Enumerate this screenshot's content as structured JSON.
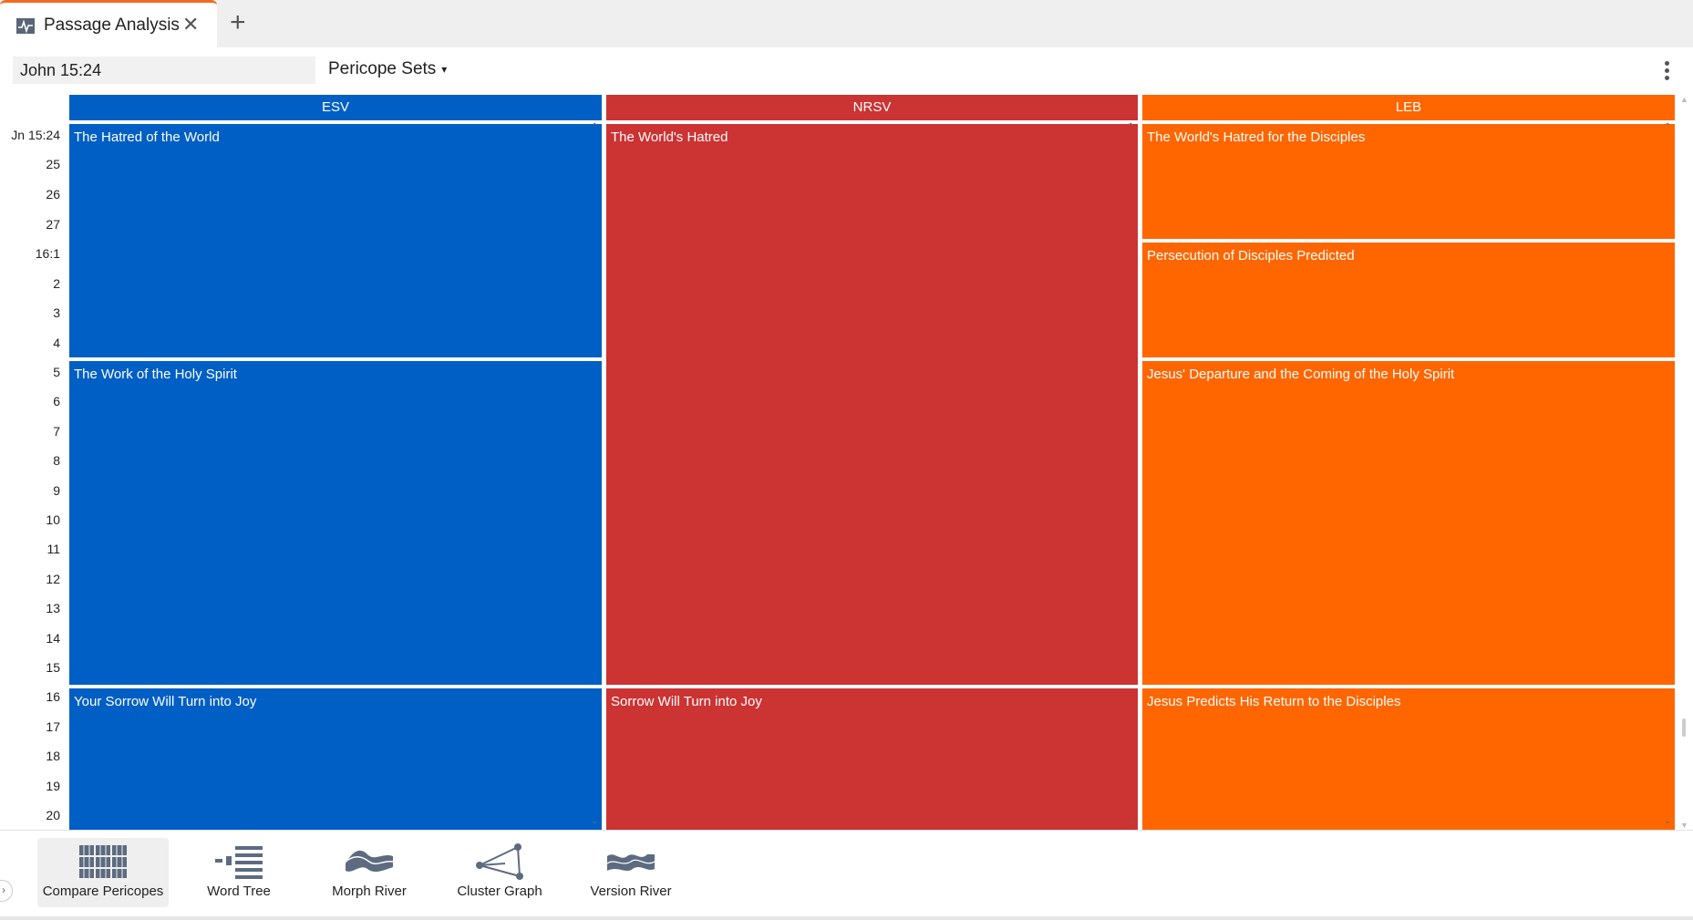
{
  "tab": {
    "title": "Passage Analysis",
    "close": "✕",
    "add": "+"
  },
  "toolbar": {
    "reference_value": "John 15:24",
    "dropdown_label": "Pericope Sets",
    "dropdown_caret": "▾"
  },
  "columns": [
    {
      "name": "ESV",
      "color": "#005fc4"
    },
    {
      "name": "NRSV",
      "color": "#cc3333"
    },
    {
      "name": "LEB",
      "color": "#ff6600"
    }
  ],
  "verse_labels": [
    "Jn 15:24",
    "25",
    "26",
    "27",
    "16:1",
    "2",
    "3",
    "4",
    "5",
    "6",
    "7",
    "8",
    "9",
    "10",
    "11",
    "12",
    "13",
    "14",
    "15",
    "16",
    "17",
    "18",
    "19",
    "20"
  ],
  "pericopes": {
    "esv": [
      "The Hatred of the World",
      "The Work of the Holy Spirit",
      "Your Sorrow Will Turn into Joy"
    ],
    "nrsv": [
      "The World's Hatred",
      "Sorrow Will Turn into Joy"
    ],
    "leb": [
      "The World's Hatred for the Disciples",
      "Persecution of Disciples Predicted",
      "Jesus' Departure and the Coming of the Holy Spirit",
      "Jesus Predicts His Return to the Disciples"
    ]
  },
  "tools": [
    {
      "label": "Compare Pericopes",
      "icon": "compare-pericopes-icon",
      "active": true
    },
    {
      "label": "Word Tree",
      "icon": "word-tree-icon",
      "active": false
    },
    {
      "label": "Morph River",
      "icon": "morph-river-icon",
      "active": false
    },
    {
      "label": "Cluster Graph",
      "icon": "cluster-graph-icon",
      "active": false
    },
    {
      "label": "Version River",
      "icon": "version-river-icon",
      "active": false
    }
  ]
}
